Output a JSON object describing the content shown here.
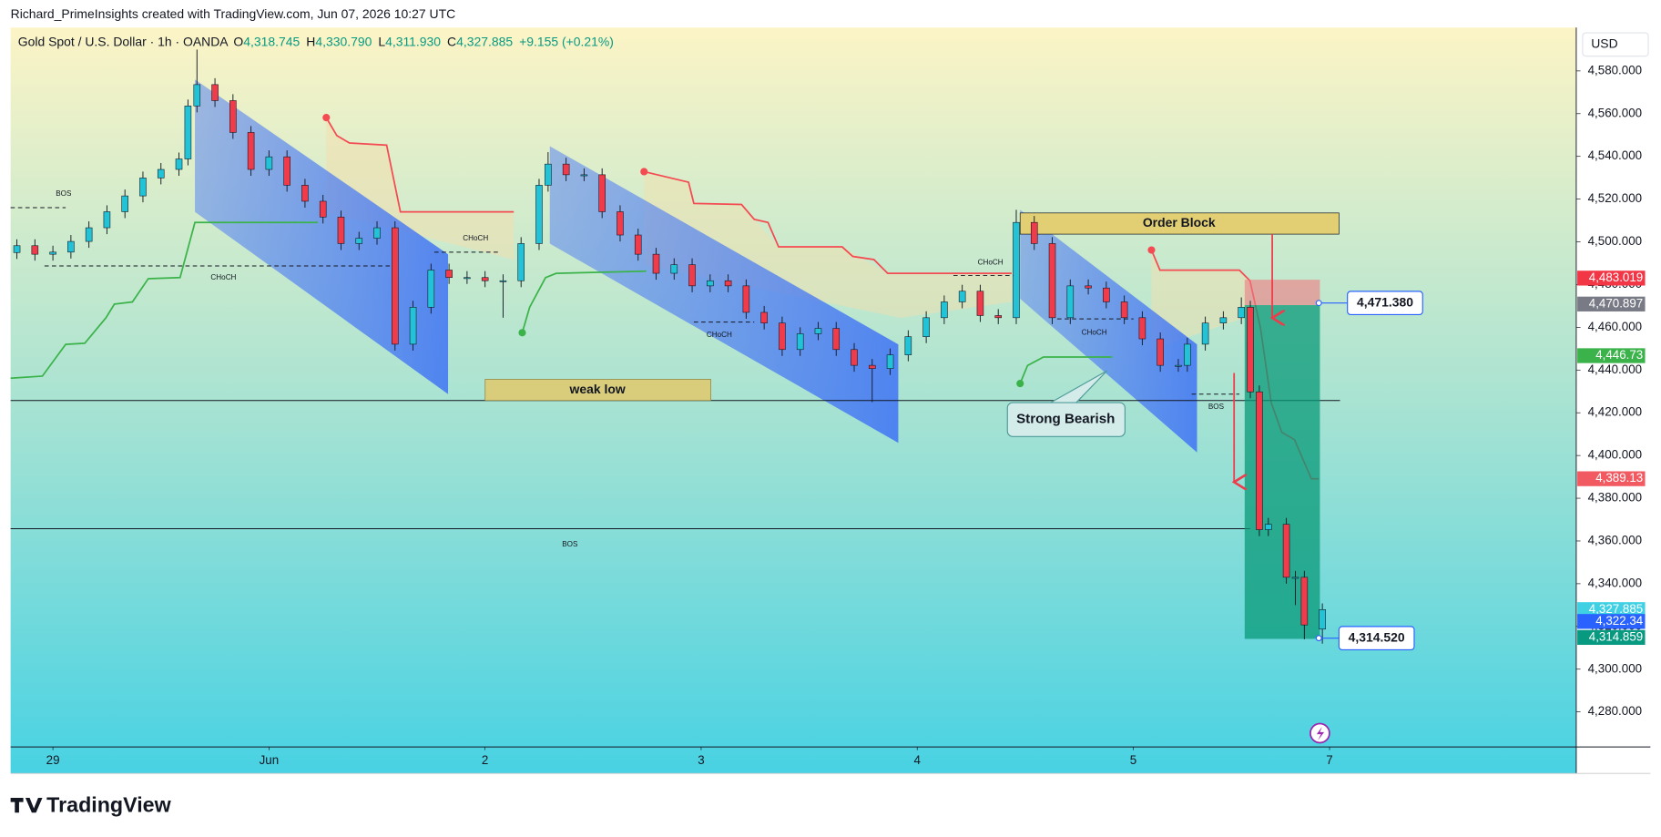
{
  "header": {
    "credit": "Richard_PrimeInsights created with TradingView.com, Jun 07, 2026 10:27 UTC",
    "symbol": "Gold Spot / U.S. Dollar · 1h · OANDA",
    "ohlc": [
      {
        "key": "O",
        "value": "4,318.745"
      },
      {
        "key": "H",
        "value": "4,330.790"
      },
      {
        "key": "L",
        "value": "4,311.930"
      },
      {
        "key": "C",
        "value": "4,327.885"
      }
    ],
    "change": "+9.155 (+0.21%)"
  },
  "currency": "USD",
  "brand": "TradingView",
  "chart_data": {
    "type": "candlestick",
    "up_color": "#22c3d6",
    "down_color": "#ef3b4a",
    "grid": false,
    "x": [
      -4,
      -2,
      0,
      2,
      4,
      6,
      8,
      10,
      12,
      14,
      15,
      16,
      18,
      20,
      22,
      24,
      26,
      28,
      30,
      32,
      34,
      36,
      38,
      40,
      42,
      44,
      46,
      48,
      50,
      52,
      54,
      55,
      57,
      59,
      61,
      63,
      65,
      67,
      69,
      71,
      73,
      75,
      77,
      79,
      81,
      83,
      85,
      87,
      89,
      91,
      93,
      95,
      97,
      99,
      101,
      103,
      105,
      107,
      109,
      111,
      113,
      115,
      117,
      119,
      121,
      123,
      125,
      126,
      128,
      130,
      132,
      133,
      134,
      135,
      137,
      138,
      139,
      141
    ],
    "ohlc": [
      [
        4495,
        4501.2,
        4492,
        4498.2
      ],
      [
        4498.2,
        4501.2,
        4491.2,
        4494.2
      ],
      [
        4494.2,
        4498.2,
        4491.2,
        4495.2
      ],
      [
        4495.2,
        4503.2,
        4492.2,
        4500.2
      ],
      [
        4500.2,
        4509.6,
        4497.2,
        4506.6
      ],
      [
        4506.6,
        4517.1,
        4503.6,
        4514.1
      ],
      [
        4514.1,
        4524.5,
        4511.1,
        4521.5
      ],
      [
        4521.5,
        4532.9,
        4518.5,
        4529.9
      ],
      [
        4529.9,
        4536.9,
        4526.9,
        4533.9
      ],
      [
        4533.9,
        4541.8,
        4530.9,
        4538.8
      ],
      [
        4538.8,
        4566.6,
        4535.8,
        4563.6
      ],
      [
        4563.6,
        4590,
        4560.6,
        4573.6
      ],
      [
        4573.6,
        4576.6,
        4563.1,
        4566.1
      ],
      [
        4566.1,
        4569.1,
        4548.2,
        4551.2
      ],
      [
        4551.2,
        4554.2,
        4530.9,
        4533.9
      ],
      [
        4533.9,
        4542.8,
        4530.9,
        4539.8
      ],
      [
        4539.8,
        4542.8,
        4523.5,
        4526.5
      ],
      [
        4526.5,
        4529.5,
        4516,
        4519
      ],
      [
        4519,
        4522,
        4508.6,
        4511.6
      ],
      [
        4511.6,
        4514.6,
        4496.2,
        4499.2
      ],
      [
        4499.2,
        4504.7,
        4496.2,
        4501.7
      ],
      [
        4501.7,
        4509.6,
        4498.7,
        4506.6
      ],
      [
        4506.6,
        4509.6,
        4449.1,
        4452.1
      ],
      [
        4452.1,
        4472.4,
        4449.1,
        4469.4
      ],
      [
        4469.4,
        4489.8,
        4466.4,
        4486.8
      ],
      [
        4486.8,
        4489.8,
        4480.3,
        4483.3
      ],
      [
        4483.3,
        4486.3,
        4480.3,
        4483.3
      ],
      [
        4483.3,
        4486.3,
        4478.8,
        4481.8
      ],
      [
        4481.8,
        4484.8,
        4464.5,
        4481.8
      ],
      [
        4481.8,
        4502.2,
        4478.8,
        4499.2
      ],
      [
        4499.2,
        4529.5,
        4496.2,
        4526.5
      ],
      [
        4526.5,
        4542,
        4523.5,
        4536.4
      ],
      [
        4536.4,
        4539.4,
        4528.4,
        4531.4
      ],
      [
        4531.4,
        4534.4,
        4528.4,
        4531.4
      ],
      [
        4531.4,
        4534.4,
        4511.1,
        4514.1
      ],
      [
        4514.1,
        4517.1,
        4500.2,
        4503.2
      ],
      [
        4503.2,
        4506.2,
        4491.2,
        4494.2
      ],
      [
        4494.2,
        4497.2,
        4482.3,
        4485.3
      ],
      [
        4485.3,
        4492.3,
        4482.3,
        4489.3
      ],
      [
        4489.3,
        4492.3,
        4476.4,
        4479.4
      ],
      [
        4479.4,
        4484.8,
        4476.4,
        4481.8
      ],
      [
        4481.8,
        4484.8,
        4476.4,
        4479.4
      ],
      [
        4479.4,
        4482.4,
        4464,
        4467
      ],
      [
        4467,
        4470,
        4459,
        4462
      ],
      [
        4462,
        4465,
        4446.6,
        4449.6
      ],
      [
        4449.6,
        4460,
        4446.6,
        4457
      ],
      [
        4457,
        4462.5,
        4454,
        4459.5
      ],
      [
        4459.5,
        4462.5,
        4446.6,
        4449.6
      ],
      [
        4449.6,
        4452.6,
        4439.2,
        4442.2
      ],
      [
        4442.2,
        4445.2,
        4425,
        4440.7
      ],
      [
        4440.7,
        4450.1,
        4437.7,
        4447.1
      ],
      [
        4447.1,
        4458.6,
        4444.1,
        4455.6
      ],
      [
        4455.6,
        4467.5,
        4452.6,
        4464.5
      ],
      [
        4464.5,
        4474.9,
        4461.5,
        4471.9
      ],
      [
        4471.9,
        4479.9,
        4468.9,
        4476.9
      ],
      [
        4476.9,
        4479.9,
        4462.5,
        4465.5
      ],
      [
        4465.5,
        4468.5,
        4461.5,
        4464.5
      ],
      [
        4464.5,
        4515,
        4461.5,
        4509.1
      ],
      [
        4509.1,
        4512.1,
        4496.2,
        4499.2
      ],
      [
        4499.2,
        4502.2,
        4461.5,
        4464.5
      ],
      [
        4464.5,
        4482.4,
        4461.5,
        4479.4
      ],
      [
        4479.4,
        4482.4,
        4475.4,
        4478.4
      ],
      [
        4478.4,
        4481.4,
        4468.9,
        4471.9
      ],
      [
        4471.9,
        4474.9,
        4461.5,
        4464.5
      ],
      [
        4464.5,
        4467.5,
        4451.6,
        4454.6
      ],
      [
        4454.6,
        4457.6,
        4439.2,
        4442.2
      ],
      [
        4442.2,
        4445.2,
        4439.2,
        4442.2
      ],
      [
        4442.2,
        4455.1,
        4439.2,
        4452.1
      ],
      [
        4452.1,
        4465,
        4449.1,
        4462
      ],
      [
        4462,
        4467.5,
        4459,
        4464.5
      ],
      [
        4464.5,
        4474,
        4461.5,
        4469.4
      ],
      [
        4469.4,
        4472.4,
        4426.8,
        4429.8
      ],
      [
        4429.8,
        4432.8,
        4362.3,
        4365.3
      ],
      [
        4365.3,
        4370.8,
        4362.3,
        4367.8
      ],
      [
        4367.8,
        4370.8,
        4340,
        4343
      ],
      [
        4343,
        4346,
        4330,
        4343
      ],
      [
        4343,
        4346,
        4314,
        4320.7
      ],
      [
        4318.745,
        4330.79,
        4311.93,
        4327.885
      ]
    ],
    "xlim": [
      -4.7,
      169.2
    ],
    "xticks": [
      {
        "value": 0,
        "label": "29"
      },
      {
        "value": 24,
        "label": "Jun"
      },
      {
        "value": 48,
        "label": "2"
      },
      {
        "value": 72,
        "label": "3"
      },
      {
        "value": 96,
        "label": "4"
      },
      {
        "value": 120,
        "label": "5"
      },
      {
        "value": 141.8,
        "label": "7"
      }
    ],
    "ylim": [
      4263.6,
      4600.3
    ],
    "yticks": [
      {
        "value": 4280,
        "label": "4,280.000"
      },
      {
        "value": 4300,
        "label": "4,300.000"
      },
      {
        "value": 4320,
        "label": "4,320.000"
      },
      {
        "value": 4340,
        "label": "4,340.000"
      },
      {
        "value": 4360,
        "label": "4,360.000"
      },
      {
        "value": 4380,
        "label": "4,380.000"
      },
      {
        "value": 4400,
        "label": "4,400.000"
      },
      {
        "value": 4420,
        "label": "4,420.000"
      },
      {
        "value": 4440,
        "label": "4,440.000"
      },
      {
        "value": 4460,
        "label": "4,460.000"
      },
      {
        "value": 4480,
        "label": "4,480.000"
      },
      {
        "value": 4500,
        "label": "4,500.000"
      },
      {
        "value": 4520,
        "label": "4,520.000"
      },
      {
        "value": 4540,
        "label": "4,540.000"
      },
      {
        "value": 4560,
        "label": "4,560.000"
      },
      {
        "value": 4580,
        "label": "4,580.000"
      }
    ],
    "price_labels": [
      {
        "value": 4483.019,
        "label": "4,483.019",
        "color": "#f23645"
      },
      {
        "value": 4470.897,
        "label": "4,470.897",
        "color": "#787b86"
      },
      {
        "value": 4446.73,
        "label": "4,446.73",
        "color": "#3bb34a"
      },
      {
        "value": 4389.13,
        "label": "4,389.13",
        "color": "#f25a62"
      },
      {
        "value": 4327.885,
        "label": "4,327.885",
        "color": "#3fd0e3"
      },
      {
        "value": 4322.34,
        "label": "4,322.34",
        "color": "#2962ff"
      },
      {
        "value": 4314.859,
        "label": "4,314.859",
        "color": "#089981"
      }
    ],
    "callouts": [
      {
        "value": 4471.38,
        "label": "4,471.380"
      },
      {
        "value": 4314.52,
        "label": "4,314.520"
      }
    ],
    "annotations": {
      "order_block": "Order Block",
      "weak_low": "weak low",
      "strong_bearish": "Strong Bearish",
      "bos": [
        "BOS",
        "BOS",
        "BOS"
      ],
      "choch": [
        "CHoCH",
        "CHoCH",
        "CHoCH",
        "CHoCH",
        "CHoCH"
      ]
    }
  }
}
